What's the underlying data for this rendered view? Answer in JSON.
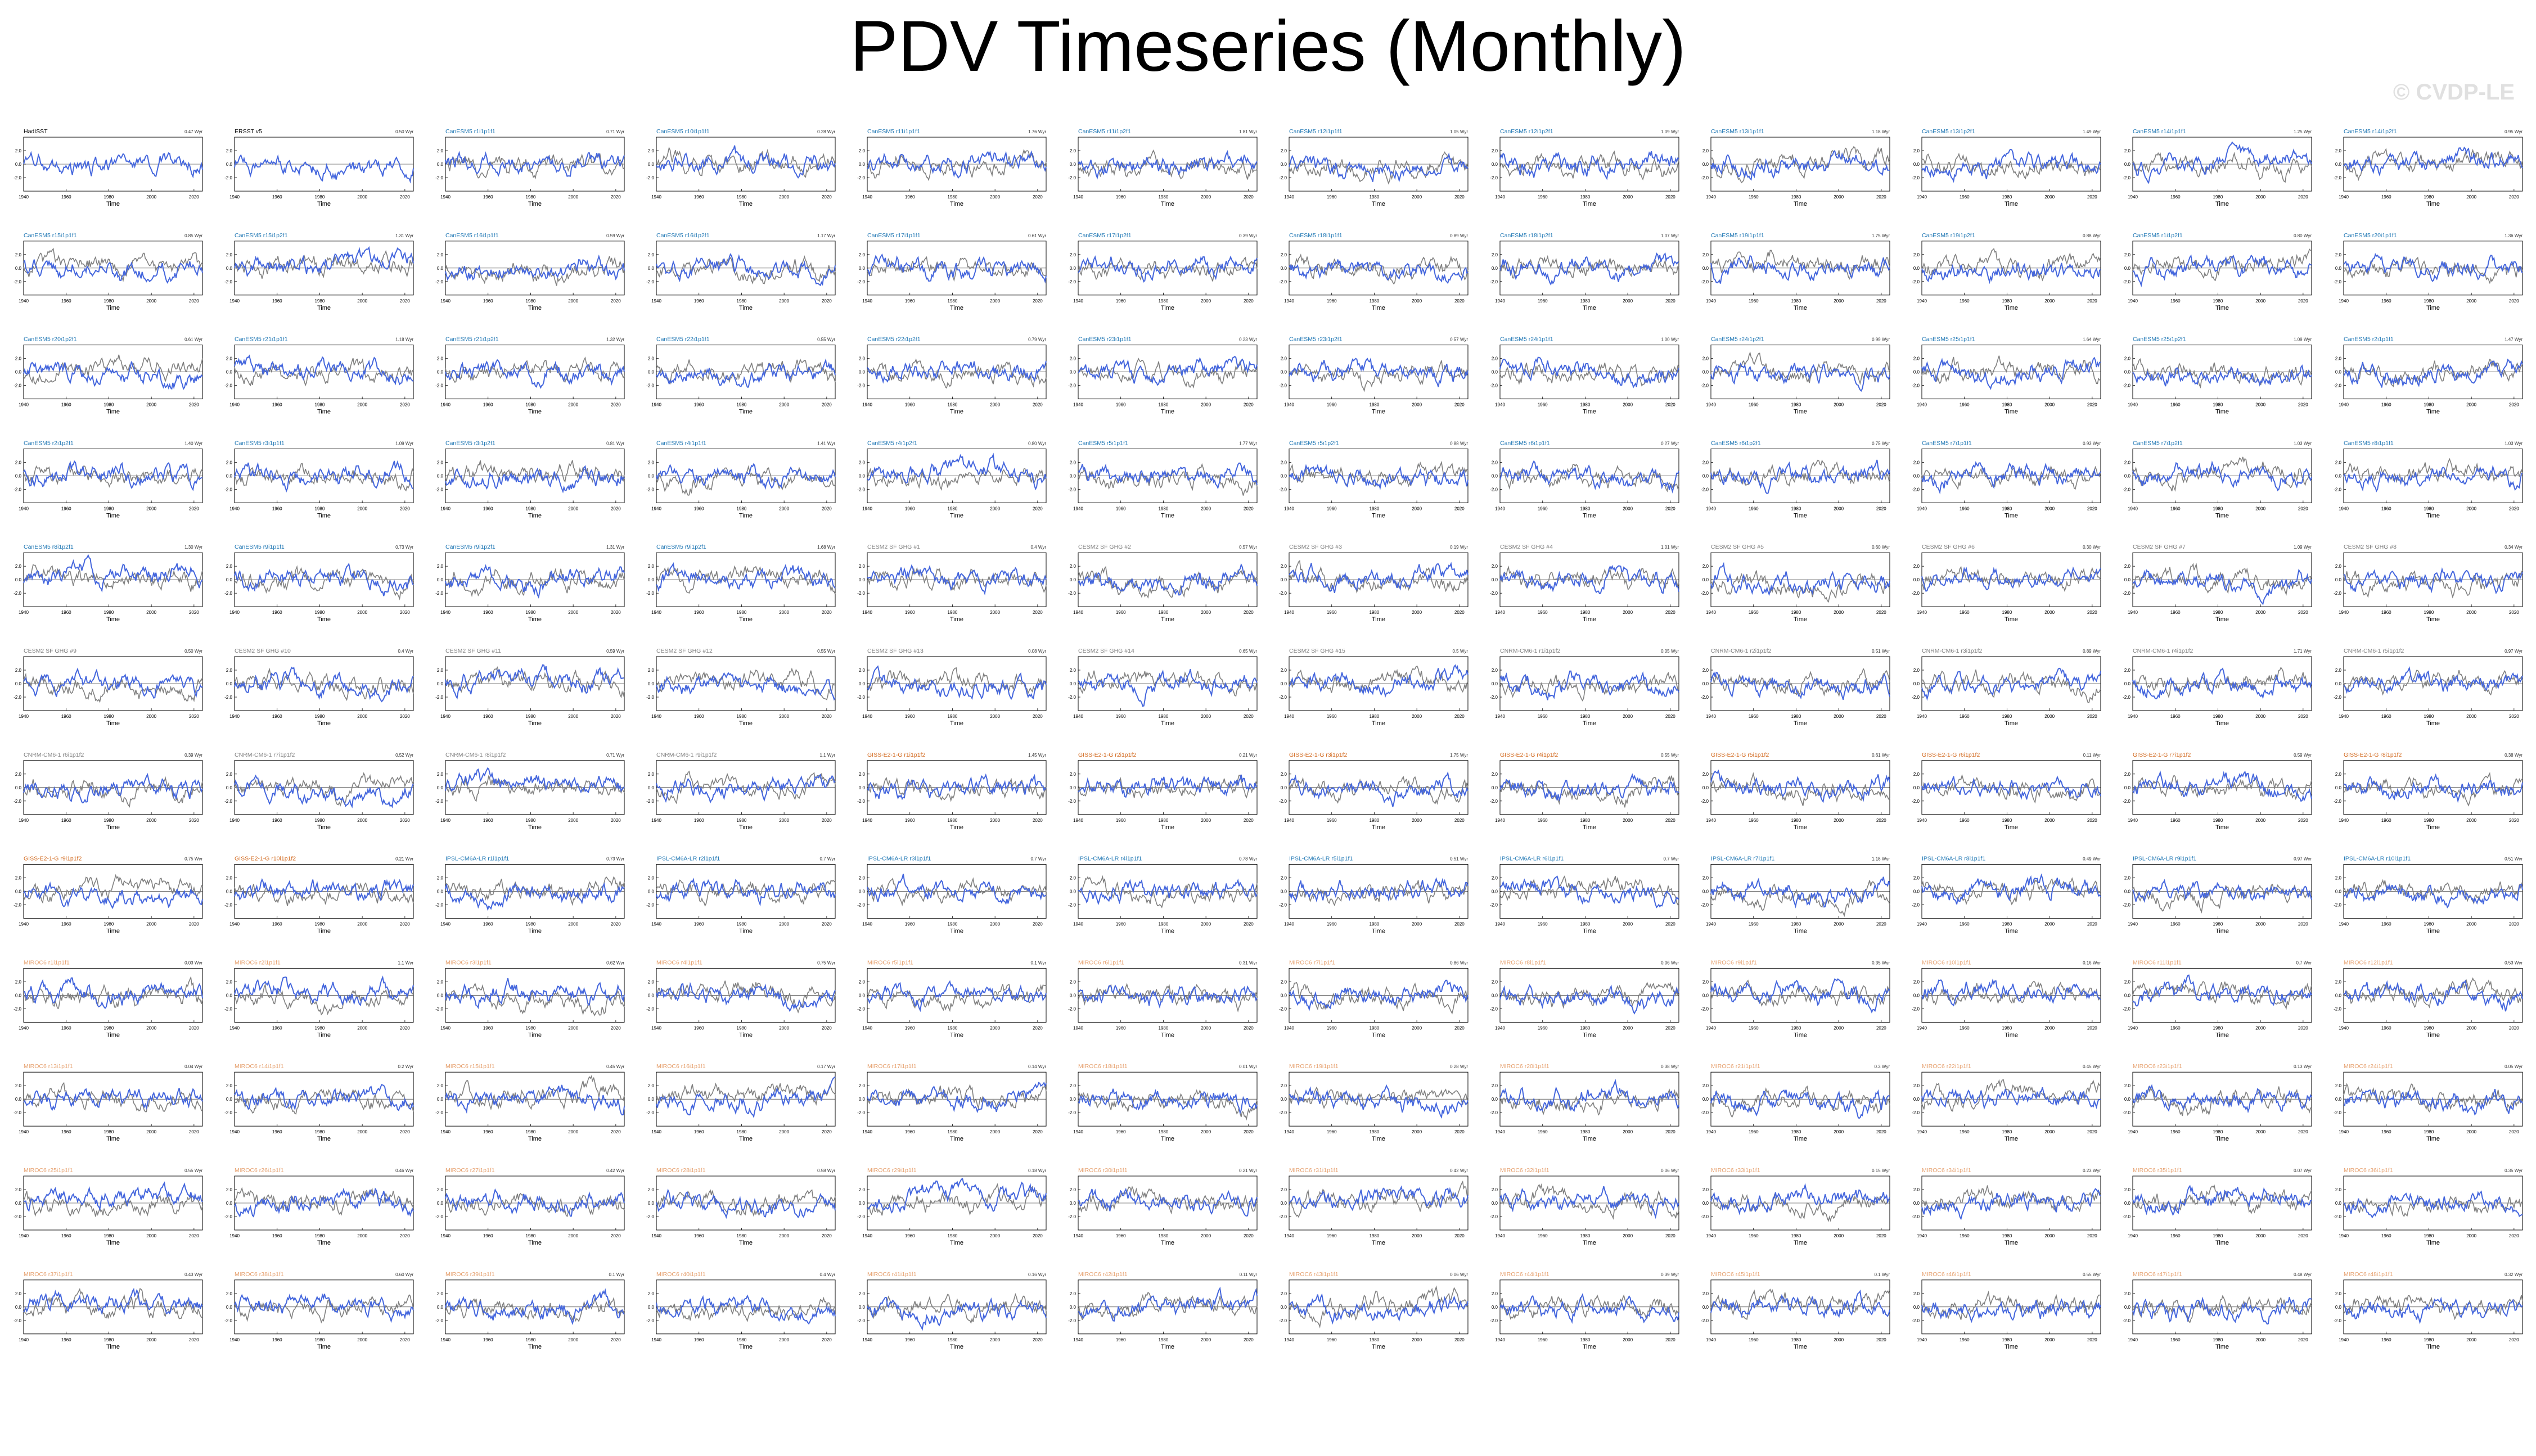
{
  "page": {
    "title": "PDV Timeseries (Monthly)",
    "watermark": "© CVDP-LE"
  },
  "colors": {
    "model_line": "#4466dd",
    "obs_line": "#808080",
    "obs_label": "#000000",
    "cesm1_label": "#1f77b4",
    "cesm2_label": "#7f7f7f",
    "cnrm_label": "#7f7f7f",
    "giss_label": "#d2691e",
    "ipsl_label": "#1f77b4",
    "miroc_label": "#e6a06e"
  },
  "chart_data": {
    "type": "line",
    "layout": "12-column small-multiples grid, 13 rows; last row holds 2 panels",
    "xlabel": "Time",
    "x_ticks": [
      "1940",
      "1960",
      "1980",
      "2000",
      "2020"
    ],
    "y_ticks": [
      "2.0",
      "0.0",
      "-2.0"
    ],
    "ylim": [
      -4,
      4
    ],
    "x_range": [
      1940,
      2024
    ],
    "series_colors": {
      "primary": "#4466dd",
      "secondary": "#808080"
    },
    "panels": [
      {
        "title": "HadISST",
        "group": "obs",
        "trend": "0.47 Wyr"
      },
      {
        "title": "ERSST v5",
        "group": "obs",
        "trend": "0.50 Wyr"
      },
      {
        "title": "CanESM5 r1i1p1f1",
        "group": "canesm",
        "trend": "0.71 Wyr"
      },
      {
        "title": "CanESM5 r10i1p1f1",
        "group": "canesm",
        "trend": "0.28 Wyr"
      },
      {
        "title": "CanESM5 r11i1p1f1",
        "group": "canesm",
        "trend": "1.76 Wyr"
      },
      {
        "title": "CanESM5 r11i1p2f1",
        "group": "canesm",
        "trend": "1.81 Wyr"
      },
      {
        "title": "CanESM5 r12i1p1f1",
        "group": "canesm",
        "trend": "1.05 Wyr"
      },
      {
        "title": "CanESM5 r12i1p2f1",
        "group": "canesm",
        "trend": "1.09 Wyr"
      },
      {
        "title": "CanESM5 r13i1p1f1",
        "group": "canesm",
        "trend": "1.18 Wyr"
      },
      {
        "title": "CanESM5 r13i1p2f1",
        "group": "canesm",
        "trend": "1.49 Wyr"
      },
      {
        "title": "CanESM5 r14i1p1f1",
        "group": "canesm",
        "trend": "1.25 Wyr"
      },
      {
        "title": "CanESM5 r14i1p2f1",
        "group": "canesm",
        "trend": "0.95 Wyr"
      },
      {
        "title": "CanESM5 r15i1p1f1",
        "group": "canesm",
        "trend": "0.85 Wyr"
      },
      {
        "title": "CanESM5 r15i1p2f1",
        "group": "canesm",
        "trend": "1.31 Wyr"
      },
      {
        "title": "CanESM5 r16i1p1f1",
        "group": "canesm",
        "trend": "0.59 Wyr"
      },
      {
        "title": "CanESM5 r16i1p2f1",
        "group": "canesm",
        "trend": "1.17 Wyr"
      },
      {
        "title": "CanESM5 r17i1p1f1",
        "group": "canesm",
        "trend": "0.61 Wyr"
      },
      {
        "title": "CanESM5 r17i1p2f1",
        "group": "canesm",
        "trend": "0.39 Wyr"
      },
      {
        "title": "CanESM5 r18i1p1f1",
        "group": "canesm",
        "trend": "0.89 Wyr"
      },
      {
        "title": "CanESM5 r18i1p2f1",
        "group": "canesm",
        "trend": "1.07 Wyr"
      },
      {
        "title": "CanESM5 r19i1p1f1",
        "group": "canesm",
        "trend": "1.75 Wyr"
      },
      {
        "title": "CanESM5 r19i1p2f1",
        "group": "canesm",
        "trend": "0.88 Wyr"
      },
      {
        "title": "CanESM5 r1i1p2f1",
        "group": "canesm",
        "trend": "0.80 Wyr"
      },
      {
        "title": "CanESM5 r20i1p1f1",
        "group": "canesm",
        "trend": "1.36 Wyr"
      },
      {
        "title": "CanESM5 r20i1p2f1",
        "group": "canesm",
        "trend": "0.61 Wyr"
      },
      {
        "title": "CanESM5 r21i1p1f1",
        "group": "canesm",
        "trend": "1.18 Wyr"
      },
      {
        "title": "CanESM5 r21i1p2f1",
        "group": "canesm",
        "trend": "1.32 Wyr"
      },
      {
        "title": "CanESM5 r22i1p1f1",
        "group": "canesm",
        "trend": "0.55 Wyr"
      },
      {
        "title": "CanESM5 r22i1p2f1",
        "group": "canesm",
        "trend": "0.79 Wyr"
      },
      {
        "title": "CanESM5 r23i1p1f1",
        "group": "canesm",
        "trend": "0.23 Wyr"
      },
      {
        "title": "CanESM5 r23i1p2f1",
        "group": "canesm",
        "trend": "0.57 Wyr"
      },
      {
        "title": "CanESM5 r24i1p1f1",
        "group": "canesm",
        "trend": "1.00 Wyr"
      },
      {
        "title": "CanESM5 r24i1p2f1",
        "group": "canesm",
        "trend": "0.99 Wyr"
      },
      {
        "title": "CanESM5 r25i1p1f1",
        "group": "canesm",
        "trend": "1.64 Wyr"
      },
      {
        "title": "CanESM5 r25i1p2f1",
        "group": "canesm",
        "trend": "1.09 Wyr"
      },
      {
        "title": "CanESM5 r2i1p1f1",
        "group": "canesm",
        "trend": "1.47 Wyr"
      },
      {
        "title": "CanESM5 r2i1p2f1",
        "group": "canesm",
        "trend": "1.40 Wyr"
      },
      {
        "title": "CanESM5 r3i1p1f1",
        "group": "canesm",
        "trend": "1.09 Wyr"
      },
      {
        "title": "CanESM5 r3i1p2f1",
        "group": "canesm",
        "trend": "0.81 Wyr"
      },
      {
        "title": "CanESM5 r4i1p1f1",
        "group": "canesm",
        "trend": "1.41 Wyr"
      },
      {
        "title": "CanESM5 r4i1p2f1",
        "group": "canesm",
        "trend": "0.80 Wyr"
      },
      {
        "title": "CanESM5 r5i1p1f1",
        "group": "canesm",
        "trend": "1.77 Wyr"
      },
      {
        "title": "CanESM5 r5i1p2f1",
        "group": "canesm",
        "trend": "0.88 Wyr"
      },
      {
        "title": "CanESM5 r6i1p1f1",
        "group": "canesm",
        "trend": "0.27 Wyr"
      },
      {
        "title": "CanESM5 r6i1p2f1",
        "group": "canesm",
        "trend": "0.75 Wyr"
      },
      {
        "title": "CanESM5 r7i1p1f1",
        "group": "canesm",
        "trend": "0.93 Wyr"
      },
      {
        "title": "CanESM5 r7i1p2f1",
        "group": "canesm",
        "trend": "1.03 Wyr"
      },
      {
        "title": "CanESM5 r8i1p1f1",
        "group": "canesm",
        "trend": "1.03 Wyr"
      },
      {
        "title": "CanESM5 r8i1p2f1",
        "group": "canesm",
        "trend": "1.30 Wyr"
      },
      {
        "title": "CanESM5 r9i1p1f1",
        "group": "canesm",
        "trend": "0.73 Wyr"
      },
      {
        "title": "CanESM5 r9i1p2f1",
        "group": "canesm",
        "trend": "1.31 Wyr"
      },
      {
        "title": "CanESM5 r9i1p2f1",
        "group": "canesm",
        "trend": "1.68 Wyr"
      },
      {
        "title": "CESM2 SF GHG #1",
        "group": "cesm2",
        "trend": "0.4 Wyr"
      },
      {
        "title": "CESM2 SF GHG #2",
        "group": "cesm2",
        "trend": "0.57 Wyr"
      },
      {
        "title": "CESM2 SF GHG #3",
        "group": "cesm2",
        "trend": "0.19 Wyr"
      },
      {
        "title": "CESM2 SF GHG #4",
        "group": "cesm2",
        "trend": "1.01 Wyr"
      },
      {
        "title": "CESM2 SF GHG #5",
        "group": "cesm2",
        "trend": "0.60 Wyr"
      },
      {
        "title": "CESM2 SF GHG #6",
        "group": "cesm2",
        "trend": "0.30 Wyr"
      },
      {
        "title": "CESM2 SF GHG #7",
        "group": "cesm2",
        "trend": "1.09 Wyr"
      },
      {
        "title": "CESM2 SF GHG #8",
        "group": "cesm2",
        "trend": "0.34 Wyr"
      },
      {
        "title": "CESM2 SF GHG #9",
        "group": "cesm2",
        "trend": "0.50 Wyr"
      },
      {
        "title": "CESM2 SF GHG #10",
        "group": "cesm2",
        "trend": "0.4 Wyr"
      },
      {
        "title": "CESM2 SF GHG #11",
        "group": "cesm2",
        "trend": "0.59 Wyr"
      },
      {
        "title": "CESM2 SF GHG #12",
        "group": "cesm2",
        "trend": "0.55 Wyr"
      },
      {
        "title": "CESM2 SF GHG #13",
        "group": "cesm2",
        "trend": "0.08 Wyr"
      },
      {
        "title": "CESM2 SF GHG #14",
        "group": "cesm2",
        "trend": "0.65 Wyr"
      },
      {
        "title": "CESM2 SF GHG #15",
        "group": "cesm2",
        "trend": "0.5 Wyr"
      },
      {
        "title": "CNRM-CM6-1 r1i1p1f2",
        "group": "cnrm",
        "trend": "0.05 Wyr"
      },
      {
        "title": "CNRM-CM6-1 r2i1p1f2",
        "group": "cnrm",
        "trend": "0.51 Wyr"
      },
      {
        "title": "CNRM-CM6-1 r3i1p1f2",
        "group": "cnrm",
        "trend": "0.89 Wyr"
      },
      {
        "title": "CNRM-CM6-1 r4i1p1f2",
        "group": "cnrm",
        "trend": "1.71 Wyr"
      },
      {
        "title": "CNRM-CM6-1 r5i1p1f2",
        "group": "cnrm",
        "trend": "0.97 Wyr"
      },
      {
        "title": "CNRM-CM6-1 r6i1p1f2",
        "group": "cnrm",
        "trend": "0.39 Wyr"
      },
      {
        "title": "CNRM-CM6-1 r7i1p1f2",
        "group": "cnrm",
        "trend": "0.52 Wyr"
      },
      {
        "title": "CNRM-CM6-1 r8i1p1f2",
        "group": "cnrm",
        "trend": "0.71 Wyr"
      },
      {
        "title": "CNRM-CM6-1 r9i1p1f2",
        "group": "cnrm",
        "trend": "1.1 Wyr"
      },
      {
        "title": "GISS-E2-1-G r1i1p1f2",
        "group": "giss",
        "trend": "1.45 Wyr"
      },
      {
        "title": "GISS-E2-1-G r2i1p1f2",
        "group": "giss",
        "trend": "0.21 Wyr"
      },
      {
        "title": "GISS-E2-1-G r3i1p1f2",
        "group": "giss",
        "trend": "1.75 Wyr"
      },
      {
        "title": "GISS-E2-1-G r4i1p1f2",
        "group": "giss",
        "trend": "0.55 Wyr"
      },
      {
        "title": "GISS-E2-1-G r5i1p1f2",
        "group": "giss",
        "trend": "0.61 Wyr"
      },
      {
        "title": "GISS-E2-1-G r6i1p1f2",
        "group": "giss",
        "trend": "0.11 Wyr"
      },
      {
        "title": "GISS-E2-1-G r7i1p1f2",
        "group": "giss",
        "trend": "0.59 Wyr"
      },
      {
        "title": "GISS-E2-1-G r8i1p1f2",
        "group": "giss",
        "trend": "0.38 Wyr"
      },
      {
        "title": "GISS-E2-1-G r9i1p1f2",
        "group": "giss",
        "trend": "0.75 Wyr"
      },
      {
        "title": "GISS-E2-1-G r10i1p1f2",
        "group": "giss",
        "trend": "0.21 Wyr"
      },
      {
        "title": "IPSL-CM6A-LR r1i1p1f1",
        "group": "ipsl",
        "trend": "0.73 Wyr"
      },
      {
        "title": "IPSL-CM6A-LR r2i1p1f1",
        "group": "ipsl",
        "trend": "0.7 Wyr"
      },
      {
        "title": "IPSL-CM6A-LR r3i1p1f1",
        "group": "ipsl",
        "trend": "0.7 Wyr"
      },
      {
        "title": "IPSL-CM6A-LR r4i1p1f1",
        "group": "ipsl",
        "trend": "0.78 Wyr"
      },
      {
        "title": "IPSL-CM6A-LR r5i1p1f1",
        "group": "ipsl",
        "trend": "0.51 Wyr"
      },
      {
        "title": "IPSL-CM6A-LR r6i1p1f1",
        "group": "ipsl",
        "trend": "0.7 Wyr"
      },
      {
        "title": "IPSL-CM6A-LR r7i1p1f1",
        "group": "ipsl",
        "trend": "1.18 Wyr"
      },
      {
        "title": "IPSL-CM6A-LR r8i1p1f1",
        "group": "ipsl",
        "trend": "0.49 Wyr"
      },
      {
        "title": "IPSL-CM6A-LR r9i1p1f1",
        "group": "ipsl",
        "trend": "0.97 Wyr"
      },
      {
        "title": "IPSL-CM6A-LR r10i1p1f1",
        "group": "ipsl",
        "trend": "0.51 Wyr"
      },
      {
        "title": "MIROC6 r1i1p1f1",
        "group": "miroc",
        "trend": "0.03 Wyr"
      },
      {
        "title": "MIROC6 r2i1p1f1",
        "group": "miroc",
        "trend": "1.1 Wyr"
      },
      {
        "title": "MIROC6 r3i1p1f1",
        "group": "miroc",
        "trend": "0.62 Wyr"
      },
      {
        "title": "MIROC6 r4i1p1f1",
        "group": "miroc",
        "trend": "0.75 Wyr"
      },
      {
        "title": "MIROC6 r5i1p1f1",
        "group": "miroc",
        "trend": "0.1 Wyr"
      },
      {
        "title": "MIROC6 r6i1p1f1",
        "group": "miroc",
        "trend": "0.31 Wyr"
      },
      {
        "title": "MIROC6 r7i1p1f1",
        "group": "miroc",
        "trend": "0.86 Wyr"
      },
      {
        "title": "MIROC6 r8i1p1f1",
        "group": "miroc",
        "trend": "0.06 Wyr"
      },
      {
        "title": "MIROC6 r9i1p1f1",
        "group": "miroc",
        "trend": "0.35 Wyr"
      },
      {
        "title": "MIROC6 r10i1p1f1",
        "group": "miroc",
        "trend": "0.16 Wyr"
      },
      {
        "title": "MIROC6 r11i1p1f1",
        "group": "miroc",
        "trend": "0.7 Wyr"
      },
      {
        "title": "MIROC6 r12i1p1f1",
        "group": "miroc",
        "trend": "0.53 Wyr"
      },
      {
        "title": "MIROC6 r13i1p1f1",
        "group": "miroc",
        "trend": "0.04 Wyr"
      },
      {
        "title": "MIROC6 r14i1p1f1",
        "group": "miroc",
        "trend": "0.2 Wyr"
      },
      {
        "title": "MIROC6 r15i1p1f1",
        "group": "miroc",
        "trend": "0.45 Wyr"
      },
      {
        "title": "MIROC6 r16i1p1f1",
        "group": "miroc",
        "trend": "0.17 Wyr"
      },
      {
        "title": "MIROC6 r17i1p1f1",
        "group": "miroc",
        "trend": "0.14 Wyr"
      },
      {
        "title": "MIROC6 r18i1p1f1",
        "group": "miroc",
        "trend": "0.01 Wyr"
      },
      {
        "title": "MIROC6 r19i1p1f1",
        "group": "miroc",
        "trend": "0.28 Wyr"
      },
      {
        "title": "MIROC6 r20i1p1f1",
        "group": "miroc",
        "trend": "0.38 Wyr"
      },
      {
        "title": "MIROC6 r21i1p1f1",
        "group": "miroc",
        "trend": "0.3 Wyr"
      },
      {
        "title": "MIROC6 r22i1p1f1",
        "group": "miroc",
        "trend": "0.45 Wyr"
      },
      {
        "title": "MIROC6 r23i1p1f1",
        "group": "miroc",
        "trend": "0.13 Wyr"
      },
      {
        "title": "MIROC6 r24i1p1f1",
        "group": "miroc",
        "trend": "0.05 Wyr"
      },
      {
        "title": "MIROC6 r25i1p1f1",
        "group": "miroc",
        "trend": "0.55 Wyr"
      },
      {
        "title": "MIROC6 r26i1p1f1",
        "group": "miroc",
        "trend": "0.46 Wyr"
      },
      {
        "title": "MIROC6 r27i1p1f1",
        "group": "miroc",
        "trend": "0.42 Wyr"
      },
      {
        "title": "MIROC6 r28i1p1f1",
        "group": "miroc",
        "trend": "0.58 Wyr"
      },
      {
        "title": "MIROC6 r29i1p1f1",
        "group": "miroc",
        "trend": "0.18 Wyr"
      },
      {
        "title": "MIROC6 r30i1p1f1",
        "group": "miroc",
        "trend": "0.21 Wyr"
      },
      {
        "title": "MIROC6 r31i1p1f1",
        "group": "miroc",
        "trend": "0.42 Wyr"
      },
      {
        "title": "MIROC6 r32i1p1f1",
        "group": "miroc",
        "trend": "0.06 Wyr"
      },
      {
        "title": "MIROC6 r33i1p1f1",
        "group": "miroc",
        "trend": "0.15 Wyr"
      },
      {
        "title": "MIROC6 r34i1p1f1",
        "group": "miroc",
        "trend": "0.23 Wyr"
      },
      {
        "title": "MIROC6 r35i1p1f1",
        "group": "miroc",
        "trend": "0.07 Wyr"
      },
      {
        "title": "MIROC6 r36i1p1f1",
        "group": "miroc",
        "trend": "0.35 Wyr"
      },
      {
        "title": "MIROC6 r37i1p1f1",
        "group": "miroc",
        "trend": "0.43 Wyr"
      },
      {
        "title": "MIROC6 r38i1p1f1",
        "group": "miroc",
        "trend": "0.60 Wyr"
      },
      {
        "title": "MIROC6 r39i1p1f1",
        "group": "miroc",
        "trend": "0.1 Wyr"
      },
      {
        "title": "MIROC6 r40i1p1f1",
        "group": "miroc",
        "trend": "0.4 Wyr"
      },
      {
        "title": "MIROC6 r41i1p1f1",
        "group": "miroc",
        "trend": "0.16 Wyr"
      },
      {
        "title": "MIROC6 r42i1p1f1",
        "group": "miroc",
        "trend": "0.11 Wyr"
      },
      {
        "title": "MIROC6 r43i1p1f1",
        "group": "miroc",
        "trend": "0.06 Wyr"
      },
      {
        "title": "MIROC6 r44i1p1f1",
        "group": "miroc",
        "trend": "0.39 Wyr"
      },
      {
        "title": "MIROC6 r45i1p1f1",
        "group": "miroc",
        "trend": "0.1 Wyr"
      },
      {
        "title": "MIROC6 r46i1p1f1",
        "group": "miroc",
        "trend": "0.55 Wyr"
      },
      {
        "title": "MIROC6 r47i1p1f1",
        "group": "miroc",
        "trend": "0.48 Wyr"
      },
      {
        "title": "MIROC6 r48i1p1f1",
        "group": "miroc",
        "trend": "0.32 Wyr"
      }
    ]
  }
}
